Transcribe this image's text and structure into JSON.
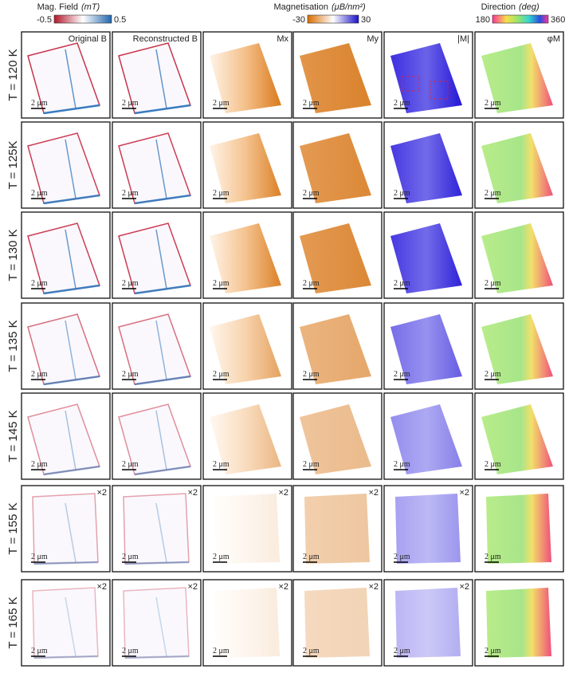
{
  "colorbars": [
    {
      "title": "Mag. Field",
      "unit": "(mT)",
      "min": "-0.5",
      "max": "0.5"
    },
    {
      "title": "Magnetisation",
      "unit": "(μB/nm²)",
      "min": "-30",
      "max": "30"
    },
    {
      "title": "Direction",
      "unit": "(deg)",
      "min": "180",
      "max": "360"
    }
  ],
  "columns": [
    "Original B",
    "Reconstructed B",
    "Mx",
    "My",
    "|M|",
    "φM"
  ],
  "rows": [
    {
      "label": "T = 120 K"
    },
    {
      "label": "T = 125K"
    },
    {
      "label": "T = 130 K"
    },
    {
      "label": "T = 135 K"
    },
    {
      "label": "T = 145 K"
    },
    {
      "label": "T = 155 K",
      "magnification": "×2"
    },
    {
      "label": "T = 165 K",
      "magnification": "×2"
    }
  ],
  "scale_bar": "2 μm"
}
